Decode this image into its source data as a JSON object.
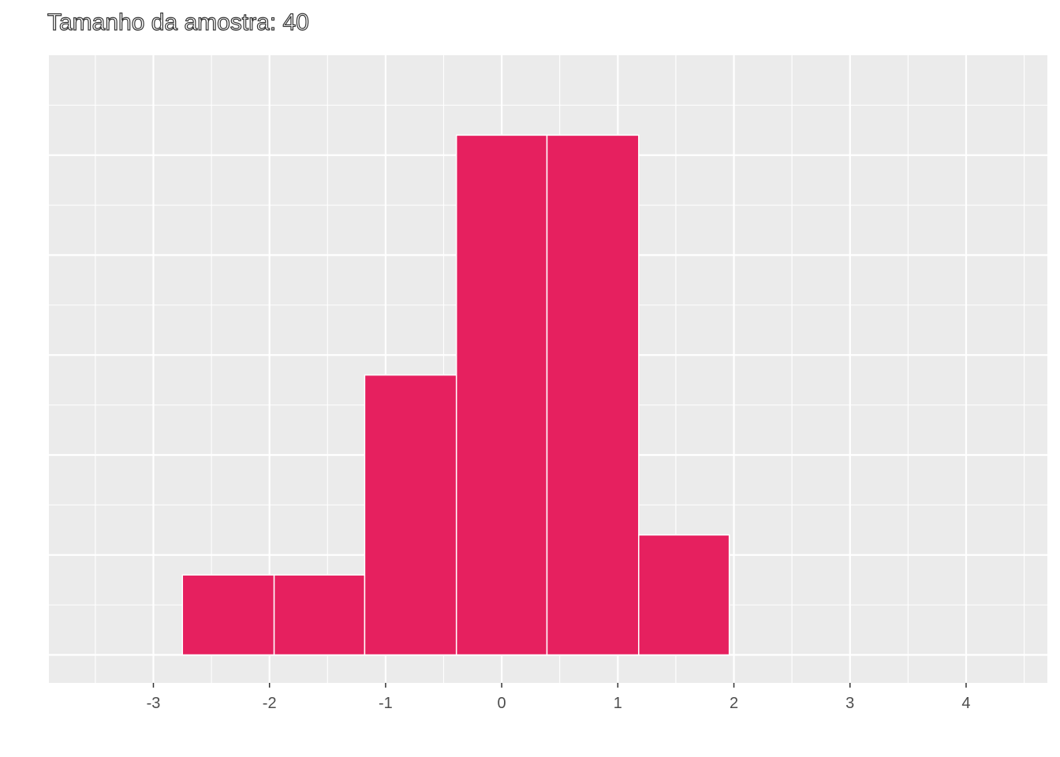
{
  "chart_data": {
    "type": "bar",
    "title": "Tamanho da amostra: 40",
    "subtitle": "",
    "xlabel": "",
    "ylabel": "",
    "bins": [
      {
        "x_start": -2.75,
        "x_end": -1.96,
        "count": 2
      },
      {
        "x_start": -1.96,
        "x_end": -1.18,
        "count": 2
      },
      {
        "x_start": -1.18,
        "x_end": -0.39,
        "count": 7
      },
      {
        "x_start": -0.39,
        "x_end": 0.39,
        "count": 13
      },
      {
        "x_start": 0.39,
        "x_end": 1.18,
        "count": 13
      },
      {
        "x_start": 1.18,
        "x_end": 1.96,
        "count": 3
      }
    ],
    "xlim": [
      -3.9,
      4.7
    ],
    "ylim": [
      -0.7,
      15
    ],
    "x_ticks": [
      -3,
      -2,
      -1,
      0,
      1,
      2,
      3,
      4
    ],
    "x_tick_labels": [
      "-3",
      "-2",
      "-1",
      "0",
      "1",
      "2",
      "3",
      "4"
    ],
    "y_major_gridlines": [
      0,
      2.5,
      5,
      7.5,
      10,
      12.5
    ],
    "y_tick_labels_visible": false,
    "grid": true,
    "legend": "none",
    "colors": {
      "bar_fill": "#E6205F",
      "bar_outline": "#FFFFFF",
      "panel_background": "#EBEBEB",
      "gridline": "#FFFFFF",
      "tick_text": "#4D4D4D",
      "tick_mark": "#333333"
    }
  }
}
